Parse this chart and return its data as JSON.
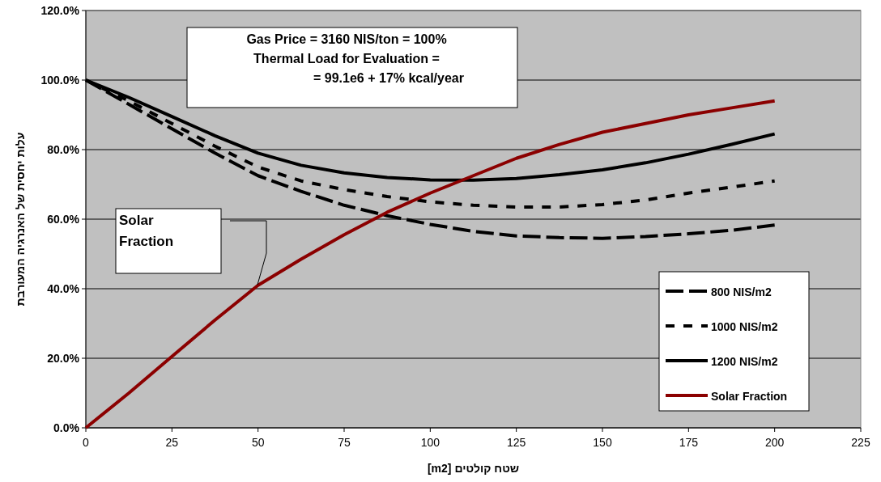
{
  "chart_data": {
    "type": "line",
    "xlabel": "שטח קולטים [m2]",
    "ylabel": "עלות יחסית של האנרגיה המעורבת",
    "x": [
      0,
      12.5,
      25,
      37.5,
      50,
      62.5,
      75,
      87.5,
      100,
      112.5,
      125,
      137.5,
      150,
      162.5,
      175,
      187.5,
      200
    ],
    "series": [
      {
        "name": "800 NIS/m2",
        "color": "#000000",
        "line_style": "dashed",
        "values": [
          100,
          93,
          86,
          79,
          72.5,
          68,
          64,
          61,
          58.5,
          56.5,
          55.2,
          54.7,
          54.5,
          55,
          55.8,
          56.8,
          58.3
        ]
      },
      {
        "name": "1000 NIS/m2",
        "color": "#000000",
        "line_style": "dotted",
        "values": [
          100,
          94,
          87.5,
          81,
          75,
          71,
          68.5,
          66.5,
          65,
          64,
          63.5,
          63.5,
          64.2,
          65.5,
          67.5,
          69.2,
          71
        ]
      },
      {
        "name": "1200 NIS/m2",
        "color": "#000000",
        "line_style": "solid",
        "values": [
          100,
          95,
          89.5,
          84,
          79,
          75.5,
          73.3,
          72,
          71.3,
          71.2,
          71.7,
          72.8,
          74.2,
          76.2,
          78.7,
          81.5,
          84.5
        ]
      },
      {
        "name": "Solar Fraction",
        "color": "#8b0000",
        "line_style": "solid",
        "values": [
          0,
          10,
          20.5,
          31,
          41,
          48.5,
          55.5,
          62,
          67.5,
          72.5,
          77.5,
          81.5,
          85,
          87.5,
          90,
          92,
          94
        ]
      }
    ],
    "xlim": [
      0,
      225
    ],
    "xticks": [
      0,
      25,
      50,
      75,
      100,
      125,
      150,
      175,
      200,
      225
    ],
    "ylim": [
      0,
      120
    ],
    "yticks": [
      {
        "value": 0,
        "label": "0.0%"
      },
      {
        "value": 20,
        "label": "20.0%"
      },
      {
        "value": 40,
        "label": "40.0%"
      },
      {
        "value": 60,
        "label": "60.0%"
      },
      {
        "value": 80,
        "label": "80.0%"
      },
      {
        "value": 100,
        "label": "100.0%"
      },
      {
        "value": 120,
        "label": "120.0%"
      }
    ],
    "grid": "y",
    "legend": "bottom right",
    "annotations": [
      "Gas Price = 3160 NIS/ton = 100%\nThermal Load for Evaluation =\n= 99.1e6 + 17% kcal/year",
      "Solar\nFraction"
    ]
  }
}
